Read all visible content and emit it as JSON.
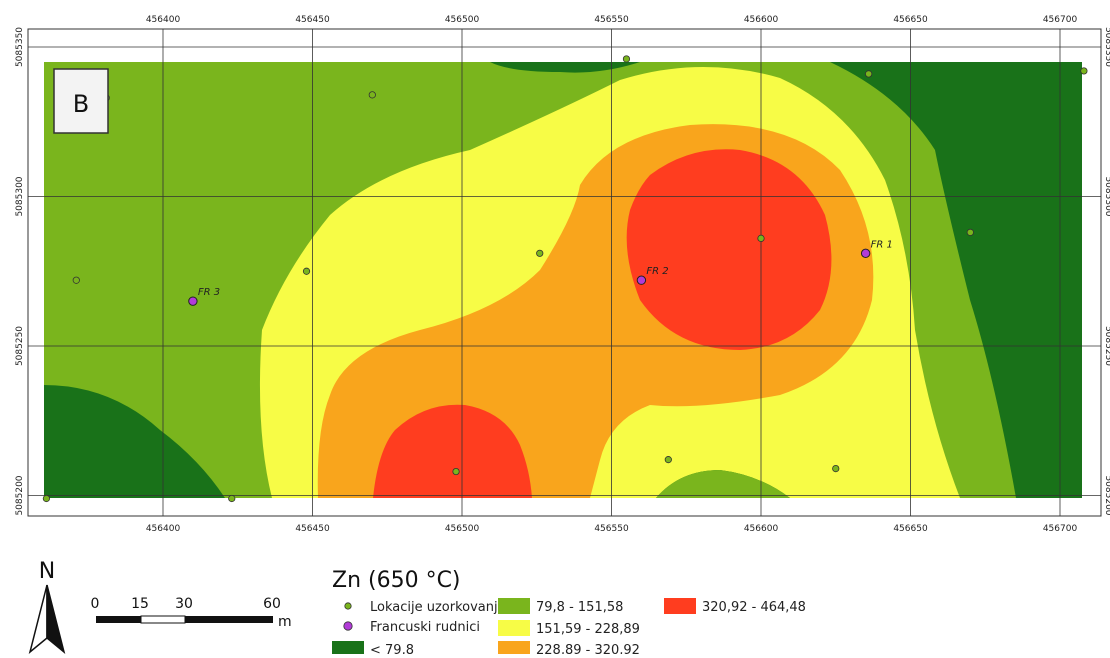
{
  "panel_label": "B",
  "north_label": "N",
  "x_ticks": [
    {
      "label": "456400",
      "value": 456400
    },
    {
      "label": "456450",
      "value": 456450
    },
    {
      "label": "456500",
      "value": 456500
    },
    {
      "label": "456550",
      "value": 456550
    },
    {
      "label": "456600",
      "value": 456600
    },
    {
      "label": "456650",
      "value": 456650
    },
    {
      "label": "456700",
      "value": 456700
    }
  ],
  "y_ticks": [
    {
      "label": "5085350",
      "value": 5085350
    },
    {
      "label": "5085300",
      "value": 5085300
    },
    {
      "label": "5085250",
      "value": 5085250
    },
    {
      "label": "5085200",
      "value": 5085200
    }
  ],
  "mines": [
    {
      "label": "FR 1",
      "x": 456635,
      "y": 5085281
    },
    {
      "label": "FR 2",
      "x": 456560,
      "y": 5085272
    },
    {
      "label": "FR 3",
      "x": 456410,
      "y": 5085265
    }
  ],
  "samples": [
    {
      "x": 456381,
      "y": 5085333
    },
    {
      "x": 456470,
      "y": 5085334
    },
    {
      "x": 456555,
      "y": 5085346
    },
    {
      "x": 456636,
      "y": 5085341
    },
    {
      "x": 456708,
      "y": 5085342
    },
    {
      "x": 456371,
      "y": 5085272
    },
    {
      "x": 456448,
      "y": 5085275
    },
    {
      "x": 456526,
      "y": 5085281
    },
    {
      "x": 456600,
      "y": 5085286
    },
    {
      "x": 456670,
      "y": 5085288
    },
    {
      "x": 456361,
      "y": 5085199
    },
    {
      "x": 456423,
      "y": 5085199
    },
    {
      "x": 456498,
      "y": 5085208
    },
    {
      "x": 456569,
      "y": 5085212
    },
    {
      "x": 456625,
      "y": 5085209
    }
  ],
  "legend": {
    "title": "Zn (650 °C)",
    "points": [
      {
        "label": "Lokacije uzorkovanja",
        "color": "#7ab51d"
      },
      {
        "label": "Francuski rudnici",
        "color": "#b23bd8"
      }
    ],
    "classes": [
      {
        "label": "< 79,8",
        "color": "#197219"
      },
      {
        "label": "79,8 - 151,58",
        "color": "#7ab51d"
      },
      {
        "label": "151,59 - 228,89",
        "color": "#f7fc46"
      },
      {
        "label": "228,89 - 320,92",
        "color": "#f9a51c"
      },
      {
        "label": "320,92 - 464,48",
        "color": "#ff3d1f"
      }
    ]
  },
  "scale_bar": {
    "labels": [
      "0",
      "15",
      "30",
      "60"
    ],
    "unit": "m"
  }
}
